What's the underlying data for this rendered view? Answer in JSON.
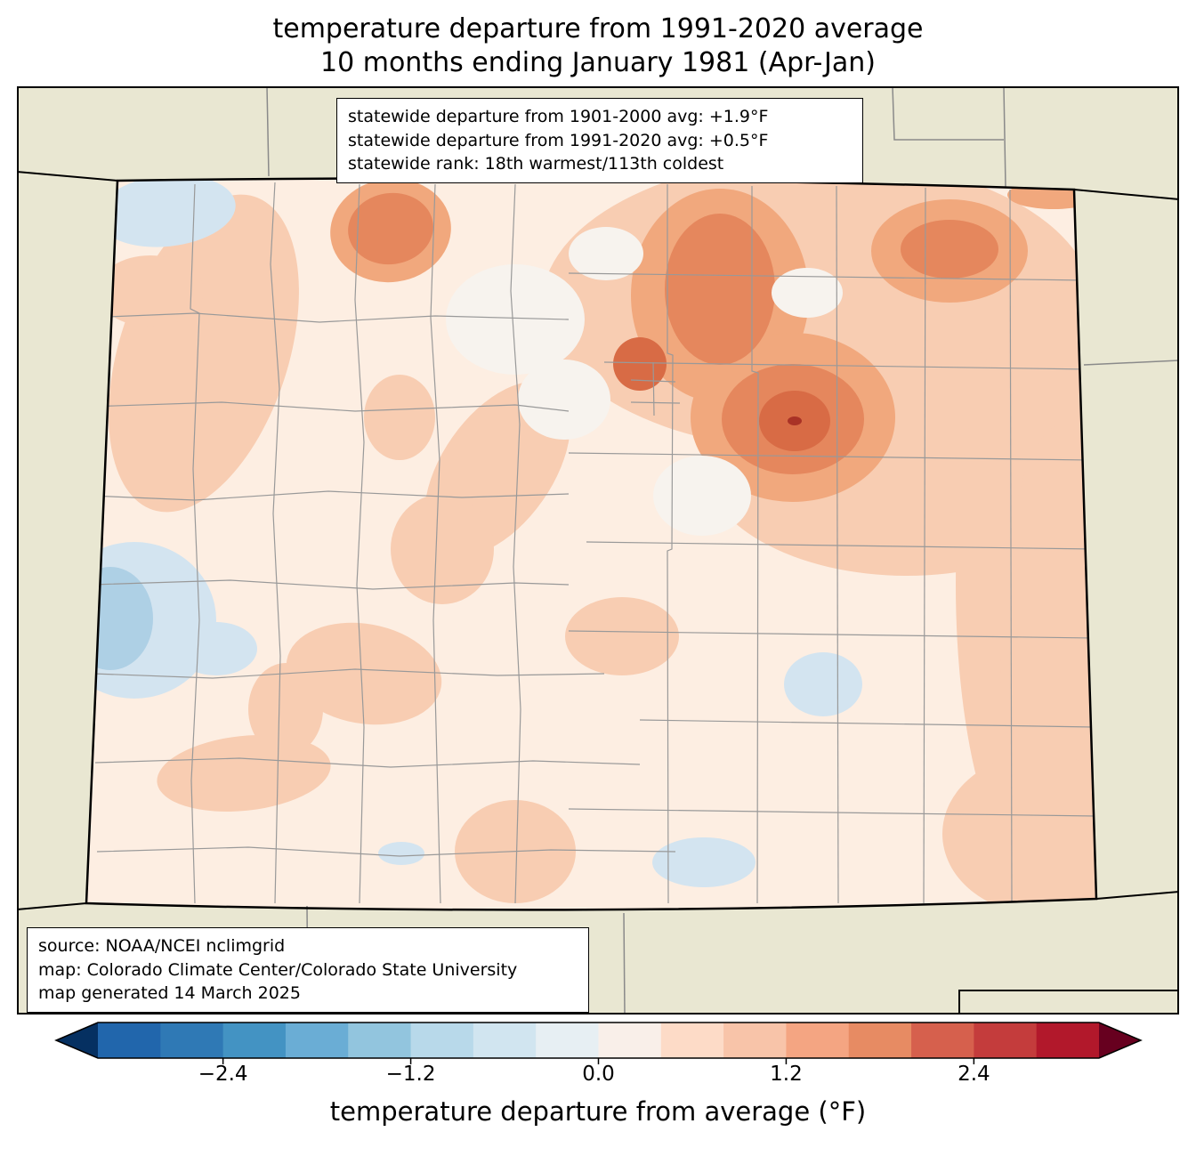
{
  "title": {
    "line1": "temperature departure from 1991-2020 average",
    "line2": "10 months ending January 1981 (Apr-Jan)"
  },
  "stats_box": {
    "line1": "statewide departure from 1901-2000 avg: +1.9°F",
    "line2": "statewide departure from 1991-2020 avg: +0.5°F",
    "line3": "statewide rank: 18th warmest/113th coldest"
  },
  "source_box": {
    "line1": "source: NOAA/NCEI nclimgrid",
    "line2": "map: Colorado Climate Center/Colorado State University",
    "line3": "map generated 14 March 2025"
  },
  "map": {
    "outside_fill": "#e9e7d2",
    "frame_color": "#000000",
    "state_border_color": "#000000",
    "county_line_color": "#999999",
    "neighbor_line_color": "#8a8a8a",
    "levels": {
      "base": "#fdeee2",
      "near_zero_white": "#f7f3ee",
      "light_orange": "#f8cdb2",
      "medium_orange": "#f1a87d",
      "dark_orange": "#e5875d",
      "deep_orange": "#d86b45",
      "dark_red_spot": "#a93226",
      "light_blue": "#d3e4f0",
      "medium_blue": "#aed0e5"
    }
  },
  "colorbar": {
    "label": "temperature departure from average (°F)",
    "range": [
      -3.2,
      3.2
    ],
    "tick_values": [
      -2.4,
      -1.2,
      0,
      1.2,
      2.4
    ],
    "tick_labels": [
      "−2.4",
      "−1.2",
      "0.0",
      "1.2",
      "2.4"
    ],
    "segment_colors": [
      "#2166ac",
      "#2f79b5",
      "#4393c3",
      "#6aadd5",
      "#92c5de",
      "#b8d9ea",
      "#d1e5f0",
      "#e7eff3",
      "#f9efe9",
      "#fddbc7",
      "#f8c4a9",
      "#f4a582",
      "#e78b63",
      "#d6604d",
      "#c43c3c",
      "#b2182b"
    ],
    "left_arrow_color": "#053061",
    "right_arrow_color": "#67001f"
  }
}
